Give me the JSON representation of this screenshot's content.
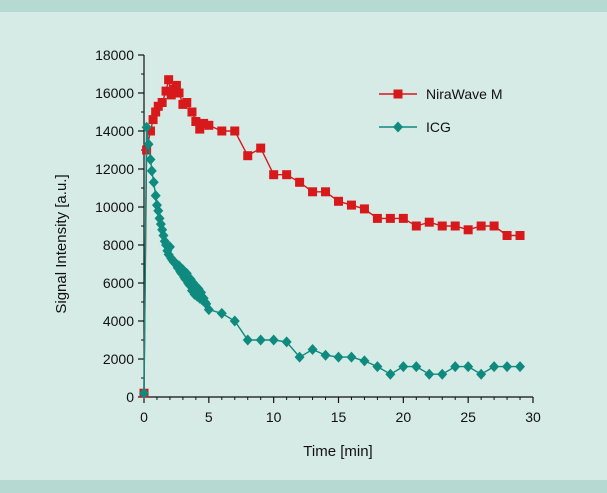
{
  "chart_data": {
    "type": "line",
    "title": "",
    "xlabel": "Time [min]",
    "ylabel": "Signal Intensity [a.u.]",
    "xlim": [
      0,
      30
    ],
    "ylim": [
      0,
      18000
    ],
    "xticks": [
      0,
      5,
      10,
      15,
      20,
      25,
      30
    ],
    "yticks": [
      0,
      2000,
      4000,
      6000,
      8000,
      10000,
      12000,
      14000,
      16000,
      18000
    ],
    "grid": false,
    "legend_position": "top-right",
    "series": [
      {
        "name": "NiraWave M",
        "color": "#d7191c",
        "marker": "square",
        "points": [
          [
            0,
            200
          ],
          [
            0.2,
            13000
          ],
          [
            0.5,
            14000
          ],
          [
            0.7,
            14600
          ],
          [
            0.9,
            15000
          ],
          [
            1.1,
            15300
          ],
          [
            1.4,
            15500
          ],
          [
            1.7,
            16100
          ],
          [
            1.9,
            16700
          ],
          [
            2.1,
            15900
          ],
          [
            2.3,
            16200
          ],
          [
            2.5,
            16400
          ],
          [
            2.7,
            16000
          ],
          [
            3.0,
            15400
          ],
          [
            3.3,
            15500
          ],
          [
            3.7,
            15000
          ],
          [
            4.0,
            14500
          ],
          [
            4.3,
            14100
          ],
          [
            4.6,
            14400
          ],
          [
            5.0,
            14300
          ],
          [
            6.0,
            14000
          ],
          [
            7.0,
            14000
          ],
          [
            8.0,
            12700
          ],
          [
            9.0,
            13100
          ],
          [
            10.0,
            11700
          ],
          [
            11.0,
            11700
          ],
          [
            12.0,
            11300
          ],
          [
            13.0,
            10800
          ],
          [
            14.0,
            10800
          ],
          [
            15.0,
            10300
          ],
          [
            16.0,
            10100
          ],
          [
            17.0,
            9900
          ],
          [
            18.0,
            9400
          ],
          [
            19.0,
            9400
          ],
          [
            20.0,
            9400
          ],
          [
            21.0,
            9000
          ],
          [
            22.0,
            9200
          ],
          [
            23.0,
            9000
          ],
          [
            24.0,
            9000
          ],
          [
            25.0,
            8800
          ],
          [
            26.0,
            9000
          ],
          [
            27.0,
            9000
          ],
          [
            28.0,
            8500
          ],
          [
            29.0,
            8500
          ]
        ]
      },
      {
        "name": "ICG",
        "color": "#0e8a7e",
        "marker": "diamond",
        "points": [
          [
            0,
            200
          ],
          [
            0.2,
            14200
          ],
          [
            0.35,
            13300
          ],
          [
            0.5,
            12500
          ],
          [
            0.6,
            11900
          ],
          [
            0.75,
            11300
          ],
          [
            0.9,
            10600
          ],
          [
            1.0,
            10100
          ],
          [
            1.1,
            9800
          ],
          [
            1.2,
            9400
          ],
          [
            1.3,
            9100
          ],
          [
            1.4,
            8800
          ],
          [
            1.5,
            8500
          ],
          [
            1.6,
            8200
          ],
          [
            1.7,
            8000
          ],
          [
            1.8,
            7700
          ],
          [
            1.9,
            7500
          ],
          [
            2.0,
            7900
          ],
          [
            2.1,
            7300
          ],
          [
            2.2,
            7200
          ],
          [
            2.3,
            7100
          ],
          [
            2.5,
            7000
          ],
          [
            2.6,
            6800
          ],
          [
            2.7,
            6900
          ],
          [
            2.8,
            6600
          ],
          [
            2.9,
            6500
          ],
          [
            3.0,
            6700
          ],
          [
            3.1,
            6300
          ],
          [
            3.2,
            6200
          ],
          [
            3.3,
            6500
          ],
          [
            3.4,
            6000
          ],
          [
            3.5,
            5900
          ],
          [
            3.6,
            6200
          ],
          [
            3.7,
            5600
          ],
          [
            3.8,
            6000
          ],
          [
            3.9,
            5400
          ],
          [
            4.0,
            5800
          ],
          [
            4.1,
            5300
          ],
          [
            4.2,
            5700
          ],
          [
            4.3,
            5200
          ],
          [
            4.4,
            5500
          ],
          [
            4.5,
            5100
          ],
          [
            4.6,
            5200
          ],
          [
            4.7,
            5000
          ],
          [
            4.8,
            4900
          ],
          [
            5.0,
            4600
          ],
          [
            6.0,
            4400
          ],
          [
            7.0,
            4000
          ],
          [
            8.0,
            3000
          ],
          [
            9.0,
            3000
          ],
          [
            10.0,
            3000
          ],
          [
            11.0,
            2900
          ],
          [
            12.0,
            2100
          ],
          [
            13.0,
            2500
          ],
          [
            14.0,
            2200
          ],
          [
            15.0,
            2100
          ],
          [
            16.0,
            2100
          ],
          [
            17.0,
            1900
          ],
          [
            18.0,
            1600
          ],
          [
            19.0,
            1200
          ],
          [
            20.0,
            1600
          ],
          [
            21.0,
            1600
          ],
          [
            22.0,
            1200
          ],
          [
            23.0,
            1200
          ],
          [
            24.0,
            1600
          ],
          [
            25.0,
            1600
          ],
          [
            26.0,
            1200
          ],
          [
            27.0,
            1600
          ],
          [
            28.0,
            1600
          ],
          [
            29.0,
            1600
          ]
        ]
      }
    ]
  }
}
